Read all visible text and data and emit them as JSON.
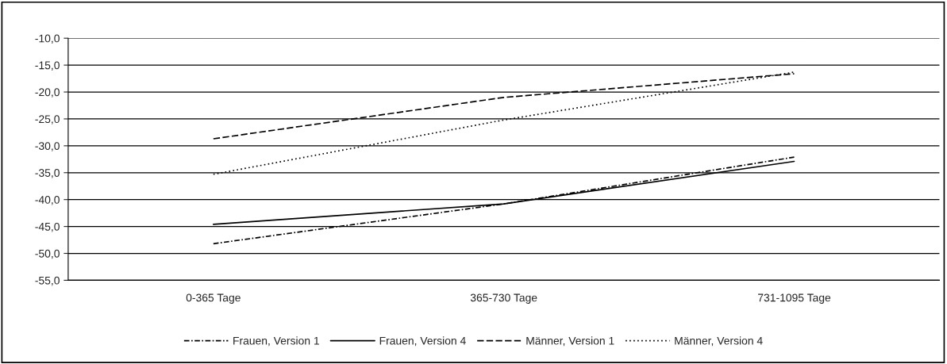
{
  "chart_data": {
    "type": "line",
    "categories": [
      "0-365 Tage",
      "365-730 Tage",
      "731-1095 Tage"
    ],
    "series": [
      {
        "name": "Frauen, Version 1",
        "color": "#000000",
        "line_style": "dashdot",
        "values": [
          -48.2,
          -40.8,
          -32.1
        ]
      },
      {
        "name": "Frauen, Version 4",
        "color": "#000000",
        "line_style": "solid",
        "values": [
          -44.6,
          -40.8,
          -32.9
        ]
      },
      {
        "name": "Männer, Version 1",
        "color": "#000000",
        "line_style": "dashed",
        "values": [
          -28.7,
          -21.0,
          -16.6
        ]
      },
      {
        "name": "Männer, Version 4",
        "color": "#000000",
        "line_style": "dotted",
        "values": [
          -35.3,
          -25.2,
          -16.3
        ]
      }
    ],
    "ylim": [
      -55,
      -10
    ],
    "yticks": [
      {
        "value": -55,
        "label": "-55,0"
      },
      {
        "value": -50,
        "label": "-50,0"
      },
      {
        "value": -45,
        "label": "-45,0"
      },
      {
        "value": -40,
        "label": "-40,0"
      },
      {
        "value": -35,
        "label": "-35,0"
      },
      {
        "value": -30,
        "label": "-30,0"
      },
      {
        "value": -25,
        "label": "-25,0"
      },
      {
        "value": -20,
        "label": "-20,0"
      },
      {
        "value": -15,
        "label": "-15,0"
      },
      {
        "value": -10,
        "label": "-10,0"
      }
    ],
    "grid": "y",
    "legend": "bottom",
    "marker": "none"
  }
}
